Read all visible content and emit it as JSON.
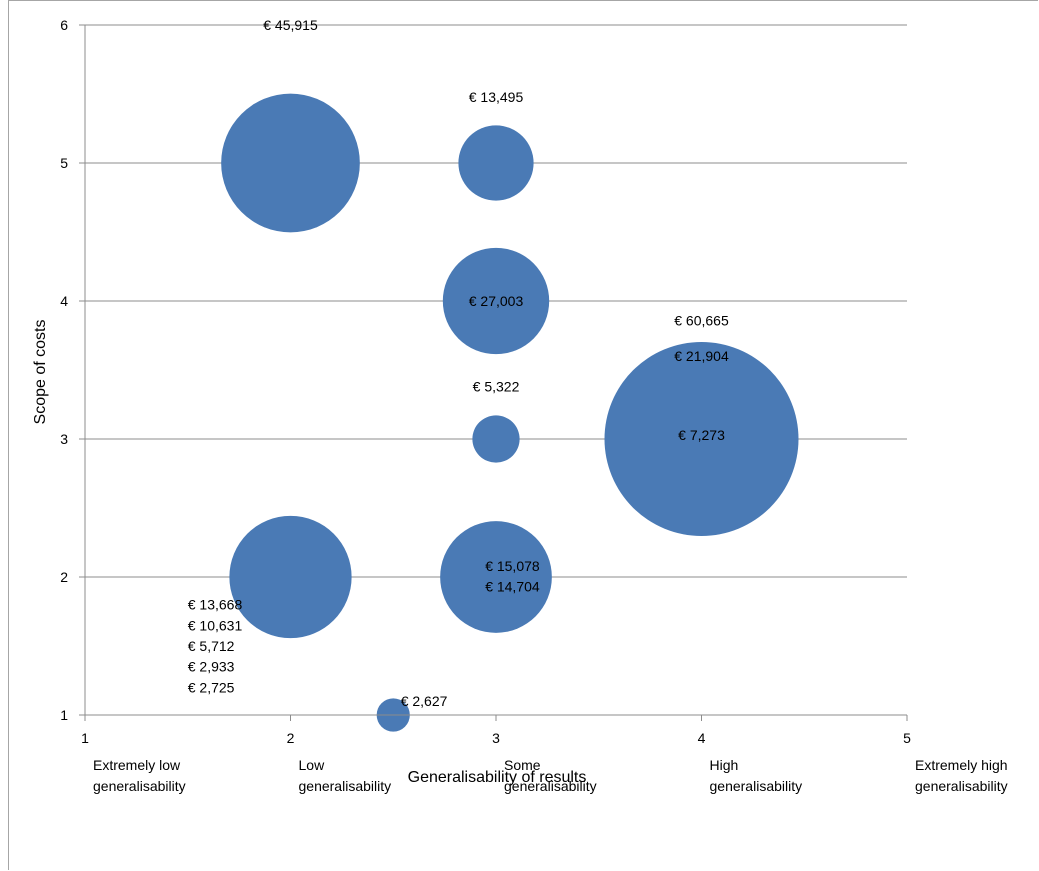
{
  "chart_data": {
    "type": "bubble",
    "xlabel": "Generalisability of results",
    "ylabel": "Scope of costs",
    "xlim": [
      1,
      5
    ],
    "ylim": [
      1,
      6
    ],
    "grid": "horizontal",
    "x_ticks": [
      {
        "value": 1,
        "label": "1",
        "category": [
          "Extremely low",
          "generalisability"
        ]
      },
      {
        "value": 2,
        "label": "2",
        "category": [
          "Low",
          "generalisability"
        ]
      },
      {
        "value": 3,
        "label": "3",
        "category": [
          "Some",
          "generalisability"
        ]
      },
      {
        "value": 4,
        "label": "4",
        "category": [
          "High",
          "generalisability"
        ]
      },
      {
        "value": 5,
        "label": "5",
        "category": [
          "Extremely high",
          "generalisability"
        ]
      }
    ],
    "y_ticks": [
      "1",
      "2",
      "3",
      "4",
      "5",
      "6"
    ],
    "bubble_color": "#4a7ab5",
    "bubbles": [
      {
        "x": 2,
        "y": 5,
        "size": 45915
      },
      {
        "x": 3,
        "y": 5,
        "size": 13495
      },
      {
        "x": 3,
        "y": 4,
        "size": 27003
      },
      {
        "x": 3,
        "y": 3,
        "size": 5322
      },
      {
        "x": 4,
        "y": 3,
        "size": 89842
      },
      {
        "x": 2,
        "y": 2,
        "size": 35669
      },
      {
        "x": 3,
        "y": 2,
        "size": 29782
      },
      {
        "x": 2.5,
        "y": 1,
        "size": 2627
      }
    ],
    "labels": [
      {
        "text": "€ 45,915",
        "x": 2,
        "y": 6,
        "anchor": "middle"
      },
      {
        "text": "€ 13,495",
        "x": 3,
        "y": 5.48,
        "anchor": "middle"
      },
      {
        "text": "€ 27,003",
        "x": 3,
        "y": 4,
        "anchor": "middle"
      },
      {
        "text": "€ 5,322",
        "x": 3,
        "y": 3.38,
        "anchor": "middle"
      },
      {
        "text": "€ 60,665",
        "x": 4,
        "y": 3.86,
        "anchor": "middle"
      },
      {
        "text": "€ 21,904",
        "x": 4,
        "y": 3.6,
        "anchor": "middle"
      },
      {
        "text": "€ 7,273",
        "x": 4,
        "y": 3.03,
        "anchor": "middle"
      },
      {
        "text": "€ 15,078",
        "x": 3.08,
        "y": 2.08,
        "anchor": "middle"
      },
      {
        "text": "€ 14,704",
        "x": 3.08,
        "y": 1.93,
        "anchor": "middle"
      },
      {
        "text": "€ 13,668",
        "x": 1.5,
        "y": 1.8,
        "anchor": "start"
      },
      {
        "text": "€ 10,631",
        "x": 1.5,
        "y": 1.65,
        "anchor": "start"
      },
      {
        "text": "€ 5,712",
        "x": 1.5,
        "y": 1.5,
        "anchor": "start"
      },
      {
        "text": "€ 2,933",
        "x": 1.5,
        "y": 1.35,
        "anchor": "start"
      },
      {
        "text": "€ 2,725",
        "x": 1.5,
        "y": 1.2,
        "anchor": "start"
      },
      {
        "text": "€ 2,627",
        "x": 2.65,
        "y": 1.1,
        "anchor": "middle"
      }
    ]
  }
}
